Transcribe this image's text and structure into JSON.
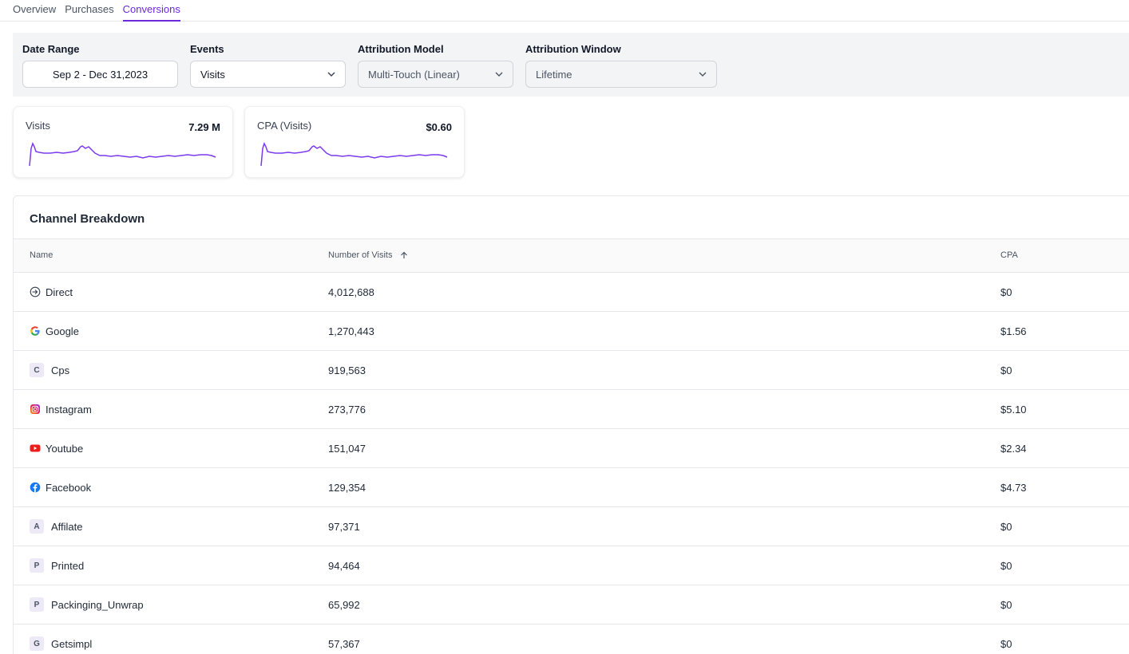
{
  "tabs": [
    {
      "label": "Overview",
      "active": false
    },
    {
      "label": "Purchases",
      "active": false
    },
    {
      "label": "Conversions",
      "active": true
    }
  ],
  "accent_color": "#6d28d9",
  "filters": {
    "date_range": {
      "label": "Date Range",
      "value": "Sep 2 - Dec 31,2023"
    },
    "events": {
      "label": "Events",
      "value": "Visits"
    },
    "attribution_model": {
      "label": "Attribution Model",
      "value": "Multi-Touch (Linear)"
    },
    "attribution_window": {
      "label": "Attribution Window",
      "value": "Lifetime"
    }
  },
  "kpis": [
    {
      "title": "Visits",
      "value": "7.29 M",
      "sparkline_color": "#7c3aed"
    },
    {
      "title": "CPA (Visits)",
      "value": "$0.60",
      "sparkline_color": "#7c3aed"
    }
  ],
  "table": {
    "title": "Channel Breakdown",
    "columns": {
      "name": "Name",
      "visits": "Number of Visits",
      "cpa": "CPA"
    },
    "sort_icon": "arrow-up-icon",
    "rows": [
      {
        "name": "Direct",
        "icon": "direct-login-icon",
        "visits": "4,012,688",
        "cpa": "$0"
      },
      {
        "name": "Google",
        "icon": "google-icon",
        "visits": "1,270,443",
        "cpa": "$1.56"
      },
      {
        "name": "Cps",
        "letter": "C",
        "visits": "919,563",
        "cpa": "$0"
      },
      {
        "name": "Instagram",
        "icon": "instagram-icon",
        "visits": "273,776",
        "cpa": "$5.10"
      },
      {
        "name": "Youtube",
        "icon": "youtube-icon",
        "visits": "151,047",
        "cpa": "$2.34"
      },
      {
        "name": "Facebook",
        "icon": "facebook-icon",
        "visits": "129,354",
        "cpa": "$4.73"
      },
      {
        "name": "Affilate",
        "letter": "A",
        "visits": "97,371",
        "cpa": "$0"
      },
      {
        "name": "Printed",
        "letter": "P",
        "visits": "94,464",
        "cpa": "$0"
      },
      {
        "name": "Packinging_Unwrap",
        "letter": "P",
        "visits": "65,992",
        "cpa": "$0"
      },
      {
        "name": "Getsimpl",
        "letter": "G",
        "visits": "57,367",
        "cpa": "$0"
      }
    ]
  }
}
